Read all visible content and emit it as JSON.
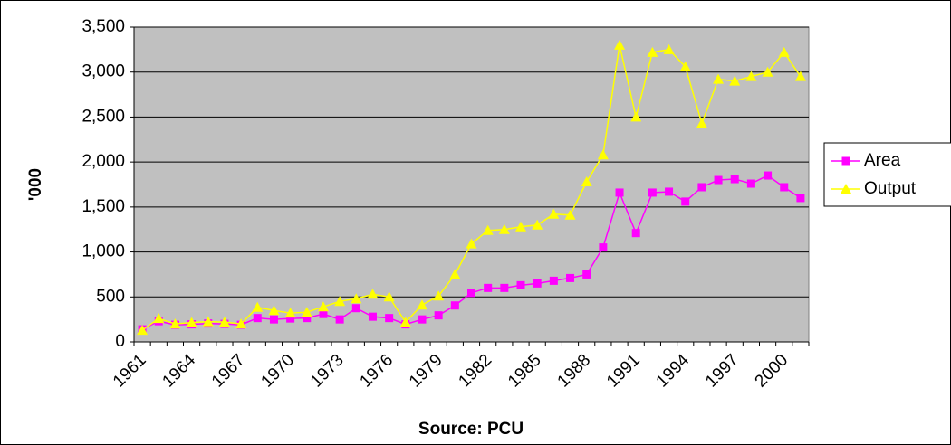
{
  "chart_data": {
    "type": "line",
    "y_label": "'000",
    "x_label": "Source: PCU",
    "categories": [
      "1961",
      null,
      null,
      "1964",
      null,
      null,
      "1967",
      null,
      null,
      "1970",
      null,
      null,
      "1973",
      null,
      null,
      "1976",
      null,
      null,
      "1979",
      null,
      null,
      "1982",
      null,
      null,
      "1985",
      null,
      null,
      "1988",
      null,
      null,
      "1991",
      null,
      null,
      "1994",
      null,
      null,
      "1997",
      null,
      null,
      "2000",
      null
    ],
    "series": [
      {
        "name": "Area",
        "color": "#ff00ff",
        "marker": "square",
        "values": [
          140,
          230,
          190,
          195,
          205,
          200,
          190,
          265,
          250,
          260,
          265,
          310,
          250,
          375,
          280,
          265,
          195,
          250,
          295,
          405,
          545,
          600,
          600,
          630,
          650,
          680,
          710,
          750,
          1050,
          1660,
          1210,
          1660,
          1670,
          1560,
          1720,
          1800,
          1810,
          1760,
          1850,
          1720,
          1600
        ]
      },
      {
        "name": "Output",
        "color": "#ffff00",
        "marker": "triangle",
        "values": [
          130,
          260,
          200,
          215,
          225,
          220,
          200,
          385,
          350,
          320,
          330,
          390,
          450,
          480,
          530,
          500,
          220,
          410,
          510,
          750,
          1090,
          1240,
          1250,
          1280,
          1300,
          1420,
          1410,
          1780,
          2080,
          3300,
          2500,
          3220,
          3250,
          3060,
          2430,
          2920,
          2900,
          2950,
          3000,
          3220,
          2950
        ]
      }
    ],
    "ylim": [
      0,
      3500
    ],
    "yticks": [
      0,
      500,
      {
        "value": 1000,
        "label": "1,000"
      },
      {
        "value": 1500,
        "label": "1,500"
      },
      {
        "value": 2000,
        "label": "2,000"
      },
      {
        "value": 2500,
        "label": "2,500"
      },
      {
        "value": 3000,
        "label": "3,000"
      },
      {
        "value": 3500,
        "label": "3,500"
      }
    ],
    "grid": true,
    "plot_background": "#c0c0c0",
    "legend": "right"
  }
}
